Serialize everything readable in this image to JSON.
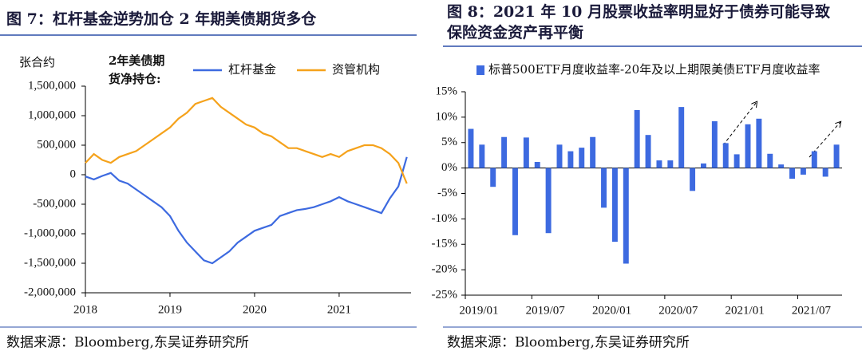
{
  "chart_data": [
    {
      "type": "line",
      "title": "图 7：杠杆基金逆势加仓 2 年期美债期货多仓",
      "y_label": "张合约",
      "annotation": [
        "2年美债期",
        "货净持仓:"
      ],
      "source": "数据来源：Bloomberg,东吴证券研究所",
      "x": [
        2018.0,
        2018.1,
        2018.2,
        2018.3,
        2018.4,
        2018.5,
        2018.6,
        2018.7,
        2018.8,
        2018.9,
        2019.0,
        2019.1,
        2019.2,
        2019.3,
        2019.4,
        2019.5,
        2019.6,
        2019.7,
        2019.8,
        2019.9,
        2020.0,
        2020.1,
        2020.2,
        2020.3,
        2020.4,
        2020.5,
        2020.6,
        2020.7,
        2020.8,
        2020.9,
        2021.0,
        2021.1,
        2021.2,
        2021.3,
        2021.4,
        2021.5,
        2021.6,
        2021.7,
        2021.8
      ],
      "xlim": [
        2018,
        2021.85
      ],
      "xticks": [
        2018,
        2019,
        2020,
        2021
      ],
      "ylim": [
        -2000000,
        1500000
      ],
      "yticks": [
        {
          "value": -2000000,
          "label": "-2,000,000"
        },
        {
          "value": -1500000,
          "label": "-1,500,000"
        },
        {
          "value": -1000000,
          "label": "-1,000,000"
        },
        {
          "value": -500000,
          "label": "-500,000"
        },
        0,
        {
          "value": 500000,
          "label": "500,000"
        },
        {
          "value": 1000000,
          "label": "1,000,000"
        },
        {
          "value": 1500000,
          "label": "1,500,000"
        }
      ],
      "series": [
        {
          "name": "杠杆基金",
          "color": "#3d6ae0",
          "values": [
            -30000,
            -80000,
            -20000,
            30000,
            -100000,
            -150000,
            -250000,
            -350000,
            -450000,
            -550000,
            -700000,
            -950000,
            -1150000,
            -1300000,
            -1450000,
            -1500000,
            -1400000,
            -1300000,
            -1150000,
            -1050000,
            -950000,
            -900000,
            -850000,
            -700000,
            -650000,
            -600000,
            -580000,
            -550000,
            -500000,
            -450000,
            -380000,
            -450000,
            -500000,
            -550000,
            -600000,
            -650000,
            -400000,
            -200000,
            300000
          ]
        },
        {
          "name": "资管机构",
          "color": "#f5a21b",
          "values": [
            200000,
            350000,
            250000,
            200000,
            300000,
            350000,
            400000,
            500000,
            600000,
            700000,
            800000,
            950000,
            1050000,
            1200000,
            1250000,
            1300000,
            1150000,
            1050000,
            950000,
            850000,
            800000,
            700000,
            650000,
            550000,
            450000,
            450000,
            400000,
            350000,
            300000,
            350000,
            300000,
            400000,
            450000,
            500000,
            500000,
            450000,
            350000,
            200000,
            -150000
          ]
        }
      ]
    },
    {
      "type": "bar",
      "title": [
        "图 8：2021 年 10 月股票收益率明显好于债券可能导致",
        "保险资金资产再平衡"
      ],
      "source": "数据来源：Bloomberg,东吴证券研究所",
      "categories": [
        "2019/01",
        null,
        null,
        null,
        null,
        null,
        "2019/07",
        null,
        null,
        null,
        null,
        null,
        "2020/01",
        null,
        null,
        null,
        null,
        null,
        "2020/07",
        null,
        null,
        null,
        null,
        null,
        "2021/01",
        null,
        null,
        null,
        null,
        null,
        "2021/07",
        null,
        null,
        null
      ],
      "ylim": [
        -25,
        15
      ],
      "yticks": [
        {
          "value": -25,
          "label": "-25%"
        },
        {
          "value": -20,
          "label": "-20%"
        },
        {
          "value": -15,
          "label": "-15%"
        },
        {
          "value": -10,
          "label": "-10%"
        },
        {
          "value": -5,
          "label": "-5%"
        },
        {
          "value": 0,
          "label": "0%"
        },
        {
          "value": 5,
          "label": "5%"
        },
        {
          "value": 10,
          "label": "10%"
        },
        {
          "value": 15,
          "label": "15%"
        }
      ],
      "series": [
        {
          "name": "标普500ETF月度收益率-20年及以上期限美债ETF月度收益率",
          "color": "#3d6ae0",
          "values": [
            7.7,
            4.6,
            -3.7,
            6.1,
            -13.2,
            6.0,
            1.2,
            -12.8,
            4.6,
            3.3,
            4.0,
            6.1,
            -7.8,
            -14.5,
            -18.8,
            11.4,
            6.5,
            1.5,
            1.5,
            12.0,
            -4.5,
            0.9,
            9.2,
            4.9,
            2.7,
            8.6,
            9.7,
            2.8,
            0.7,
            -2.1,
            -1.3,
            3.3,
            -1.7,
            4.6
          ]
        }
      ]
    }
  ]
}
